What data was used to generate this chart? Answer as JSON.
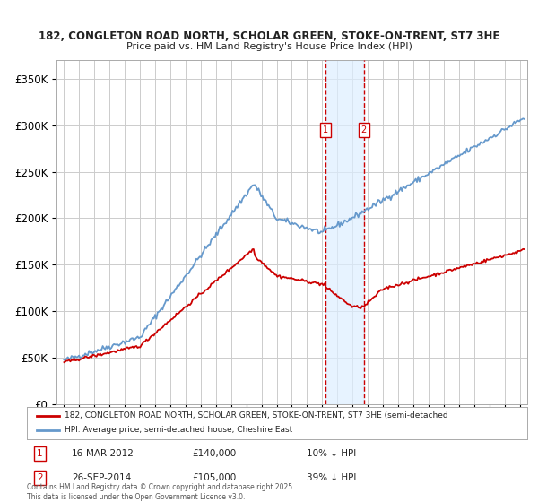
{
  "title1": "182, CONGLETON ROAD NORTH, SCHOLAR GREEN, STOKE-ON-TRENT, ST7 3HE",
  "title2": "Price paid vs. HM Land Registry's House Price Index (HPI)",
  "legend_red": "182, CONGLETON ROAD NORTH, SCHOLAR GREEN, STOKE-ON-TRENT, ST7 3HE (semi-detached",
  "legend_blue": "HPI: Average price, semi-detached house, Cheshire East",
  "annotation1_label": "1",
  "annotation1_date": "16-MAR-2012",
  "annotation1_price": "£140,000",
  "annotation1_hpi": "10% ↓ HPI",
  "annotation2_label": "2",
  "annotation2_date": "26-SEP-2014",
  "annotation2_price": "£105,000",
  "annotation2_hpi": "39% ↓ HPI",
  "copyright": "Contains HM Land Registry data © Crown copyright and database right 2025.\nThis data is licensed under the Open Government Licence v3.0.",
  "vline1_x": 2012.21,
  "vline2_x": 2014.74,
  "ylim_min": 0,
  "ylim_max": 370000,
  "xlim_min": 1994.5,
  "xlim_max": 2025.5,
  "yticks": [
    0,
    50000,
    100000,
    150000,
    200000,
    250000,
    300000,
    350000
  ],
  "ytick_labels": [
    "£0",
    "£50K",
    "£100K",
    "£150K",
    "£200K",
    "£250K",
    "£300K",
    "£350K"
  ],
  "xticks": [
    1995,
    1996,
    1997,
    1998,
    1999,
    2000,
    2001,
    2002,
    2003,
    2004,
    2005,
    2006,
    2007,
    2008,
    2009,
    2010,
    2011,
    2012,
    2013,
    2014,
    2015,
    2016,
    2017,
    2018,
    2019,
    2020,
    2021,
    2022,
    2023,
    2024,
    2025
  ],
  "background_color": "#ffffff",
  "plot_bg_color": "#ffffff",
  "grid_color": "#cccccc",
  "red_color": "#cc0000",
  "blue_color": "#6699cc",
  "shade_color": "#ddeeff",
  "vline_color": "#cc0000"
}
